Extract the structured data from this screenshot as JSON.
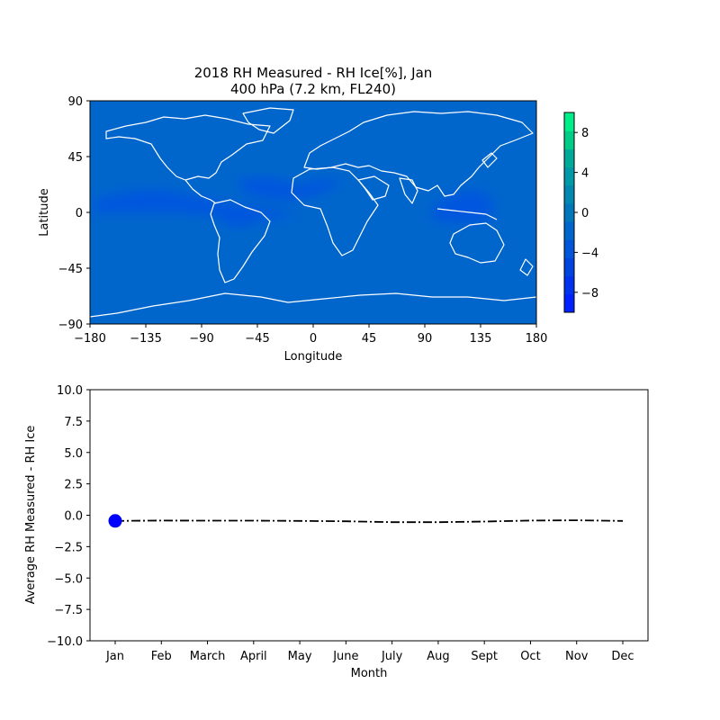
{
  "chart_data": [
    {
      "type": "heatmap",
      "title_line1": "2018 RH Measured - RH Ice[%], Jan",
      "title_line2": "400 hPa (7.2 km, FL240)",
      "xlabel": "Longitude",
      "ylabel": "Latitude",
      "xlim": [
        -180,
        180
      ],
      "ylim": [
        -90,
        90
      ],
      "xticks": [
        -180,
        -135,
        -90,
        -45,
        0,
        45,
        90,
        135,
        180
      ],
      "xtick_labels": [
        "−180",
        "−135",
        "−90",
        "−45",
        "0",
        "45",
        "90",
        "135",
        "180"
      ],
      "yticks": [
        -90,
        -45,
        0,
        45,
        90
      ],
      "ytick_labels": [
        "−90",
        "−45",
        "0",
        "45",
        "90"
      ],
      "colorbar": {
        "range": [
          -10,
          10
        ],
        "ticks": [
          8,
          4,
          0,
          -4,
          -8
        ],
        "tick_labels": [
          "8",
          "4",
          "0",
          "−4",
          "−8"
        ],
        "colors_bottom_to_top": [
          "#0022ff",
          "#0033ee",
          "#0044e0",
          "#0055d8",
          "#0066cc",
          "#0077bb",
          "#0088b0",
          "#0099a8",
          "#00aa99",
          "#00cc88",
          "#00ee88"
        ]
      },
      "field_background_color": "#0066cc",
      "anomaly_color": "#0055e0",
      "coastline_color": "#ffffff"
    },
    {
      "type": "line",
      "ylabel": "Average RH Measured - RH Ice",
      "xlabel": "Month",
      "categories": [
        "Jan",
        "Feb",
        "March",
        "April",
        "May",
        "June",
        "July",
        "Aug",
        "Sept",
        "Oct",
        "Nov",
        "Dec"
      ],
      "values": [
        -0.45,
        -0.42,
        -0.43,
        -0.43,
        -0.45,
        -0.48,
        -0.55,
        -0.55,
        -0.5,
        -0.42,
        -0.4,
        -0.45
      ],
      "ylim": [
        -10,
        10
      ],
      "yticks": [
        10.0,
        7.5,
        5.0,
        2.5,
        0.0,
        -2.5,
        -5.0,
        -7.5,
        -10.0
      ],
      "ytick_labels": [
        "10.0",
        "7.5",
        "5.0",
        "2.5",
        "0.0",
        "−2.5",
        "−5.0",
        "−7.5",
        "−10.0"
      ],
      "highlight_index": 0,
      "line_color": "#000000",
      "line_style": "dash-dot",
      "highlight_color": "#0000ff"
    }
  ]
}
